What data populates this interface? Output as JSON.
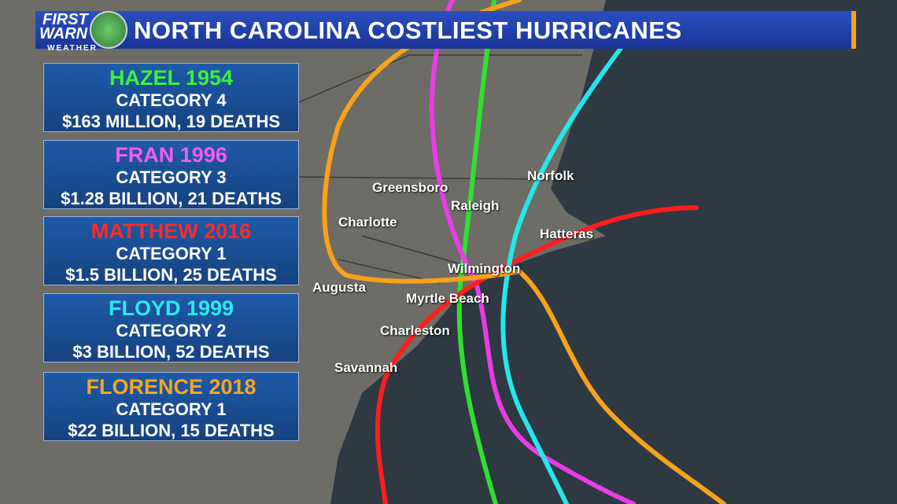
{
  "header": {
    "logo": {
      "line1": "FIRST",
      "line2": "WARN",
      "line3": "WEATHER"
    },
    "title": "NORTH CAROLINA COSTLIEST HURRICANES"
  },
  "storms": [
    {
      "name": "HAZEL 1954",
      "category": "CATEGORY 4",
      "impact": "$163 MILLION, 19 DEATHS"
    },
    {
      "name": "FRAN 1996",
      "category": "CATEGORY 3",
      "impact": "$1.28 BILLION, 21 DEATHS"
    },
    {
      "name": "MATTHEW 2016",
      "category": "CATEGORY 1",
      "impact": "$1.5 BILLION, 25 DEATHS"
    },
    {
      "name": "FLOYD  1999",
      "category": "CATEGORY 2",
      "impact": "$3 BILLION, 52 DEATHS"
    },
    {
      "name": "FLORENCE 2018",
      "category": "CATEGORY 1",
      "impact": "$22 BILLION, 15 DEATHS"
    }
  ],
  "cities": [
    "Norfolk",
    "Greensboro",
    "Raleigh",
    "Charlotte",
    "Hatteras",
    "Wilmington",
    "Augusta",
    "Myrtle Beach",
    "Charleston",
    "Savannah"
  ]
}
